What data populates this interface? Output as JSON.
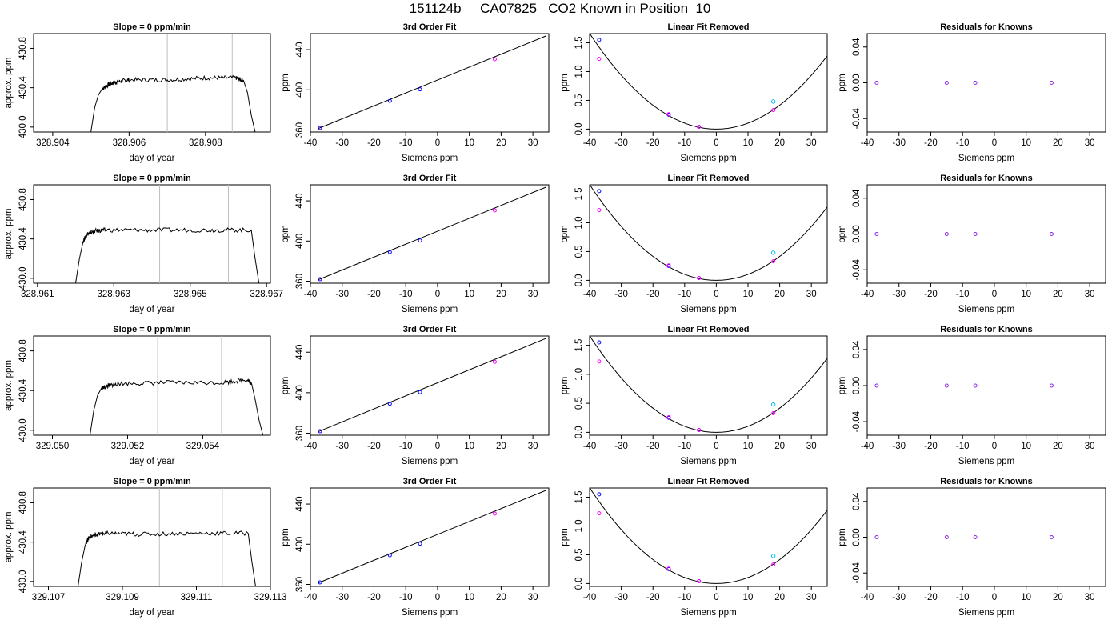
{
  "page_title": "151124b     CA07825   CO2 Known in Position  10",
  "labels": {
    "slope_title": "Slope =  0  ppm/min",
    "fit_title": "3rd Order Fit",
    "linear_title": "Linear Fit Removed",
    "residual_title": "Residuals for Knowns",
    "doy_xlabel": "day of year",
    "doy_ylabel": "approx. ppm",
    "siemens_xlabel": "Siemens ppm",
    "ppm_ylabel": "ppm"
  },
  "colors": {
    "trace": "#000000",
    "gridline": "#bebebe",
    "point_blue": "#0000ff",
    "point_magenta": "#ff00ff",
    "point_cyan": "#00bfff",
    "residual_point": "#8a2be2"
  },
  "chart_data": [
    {
      "type": "line",
      "title": "Slope =  0  ppm/min",
      "xlabel": "day of year",
      "ylabel": "approx. ppm",
      "xlim": [
        328.9035,
        328.9097
      ],
      "ylim": [
        429.95,
        430.95
      ],
      "xticks": [
        "328.904",
        "328.906",
        "328.908"
      ],
      "xtick_values": [
        328.904,
        328.906,
        328.908
      ],
      "yticks": [
        "430.0",
        "430.4",
        "430.8"
      ],
      "ytick_values": [
        430.0,
        430.4,
        430.8
      ],
      "vlines": [
        328.907,
        328.9087
      ],
      "trace": {
        "x": [
          328.905,
          328.9051,
          328.9052,
          328.9053,
          328.9055,
          328.9057,
          328.906,
          328.907,
          328.908,
          328.9088,
          328.909,
          328.9091,
          328.9092,
          328.9093
        ],
        "y": [
          429.95,
          430.2,
          430.33,
          430.39,
          430.44,
          430.46,
          430.48,
          430.48,
          430.5,
          430.5,
          430.47,
          430.35,
          430.12,
          429.95
        ]
      }
    },
    {
      "type": "line",
      "title": "Slope =  0  ppm/min",
      "xlabel": "day of year",
      "ylabel": "approx. ppm",
      "xlim": [
        328.9609,
        328.9671
      ],
      "ylim": [
        429.95,
        430.95
      ],
      "xticks": [
        "328.961",
        "328.963",
        "328.965",
        "328.967"
      ],
      "xtick_values": [
        328.961,
        328.963,
        328.965,
        328.967
      ],
      "yticks": [
        "430.0",
        "430.4",
        "430.8"
      ],
      "ytick_values": [
        430.0,
        430.4,
        430.8
      ],
      "vlines": [
        328.9642,
        328.966
      ],
      "trace": {
        "x": [
          328.962,
          328.9621,
          328.9622,
          328.9623,
          328.9625,
          328.9628,
          328.964,
          328.9655,
          328.9666,
          328.9667,
          328.9668
        ],
        "y": [
          429.95,
          430.2,
          430.38,
          430.45,
          430.48,
          430.49,
          430.49,
          430.49,
          430.49,
          430.2,
          429.95
        ]
      }
    },
    {
      "type": "line",
      "title": "Slope =  0  ppm/min",
      "xlabel": "day of year",
      "ylabel": "approx. ppm",
      "xlim": [
        329.0495,
        329.0558
      ],
      "ylim": [
        429.95,
        430.95
      ],
      "xticks": [
        "329.050",
        "329.052",
        "329.054"
      ],
      "xtick_values": [
        329.05,
        329.052,
        329.054
      ],
      "yticks": [
        "430.0",
        "430.4",
        "430.8"
      ],
      "ytick_values": [
        430.0,
        430.4,
        430.8
      ],
      "vlines": [
        329.0528,
        329.0545
      ],
      "trace": {
        "x": [
          329.051,
          329.0511,
          329.0512,
          329.0513,
          329.0515,
          329.0518,
          329.053,
          329.0545,
          329.0552,
          329.0553,
          329.0554,
          329.0555,
          329.0556
        ],
        "y": [
          429.95,
          430.2,
          430.35,
          430.42,
          430.45,
          430.47,
          430.48,
          430.48,
          430.51,
          430.47,
          430.3,
          430.1,
          429.95
        ]
      }
    },
    {
      "type": "line",
      "title": "Slope =  0  ppm/min",
      "xlabel": "day of year",
      "ylabel": "approx. ppm",
      "xlim": [
        329.1066,
        329.113
      ],
      "ylim": [
        429.95,
        430.95
      ],
      "xticks": [
        "329.107",
        "329.109",
        "329.111",
        "329.113"
      ],
      "xtick_values": [
        329.107,
        329.109,
        329.111,
        329.113
      ],
      "yticks": [
        "430.0",
        "430.4",
        "430.8"
      ],
      "ytick_values": [
        430.0,
        430.4,
        430.8
      ],
      "vlines": [
        329.11,
        329.1117
      ],
      "trace": {
        "x": [
          329.1078,
          329.1079,
          329.108,
          329.1081,
          329.1083,
          329.1086,
          329.1095,
          329.111,
          329.1124,
          329.1125,
          329.1126
        ],
        "y": [
          429.95,
          430.2,
          430.38,
          430.45,
          430.48,
          430.49,
          430.48,
          430.49,
          430.49,
          430.2,
          429.95
        ]
      }
    },
    {
      "type": "scatter",
      "title": "3rd Order Fit",
      "xlabel": "Siemens ppm",
      "ylabel": "ppm",
      "xlim": [
        -40,
        35
      ],
      "ylim": [
        358,
        456
      ],
      "xticks": [
        "-40",
        "-30",
        "-20",
        "-10",
        "0",
        "10",
        "20",
        "30"
      ],
      "xtick_values": [
        -40,
        -30,
        -20,
        -10,
        0,
        10,
        20,
        30
      ],
      "yticks": [
        "360",
        "400",
        "440"
      ],
      "ytick_values": [
        360,
        400,
        440
      ],
      "fit_line": {
        "x": [
          -37.5,
          34
        ],
        "y": [
          361.5,
          453.5
        ]
      },
      "points_blue": {
        "x": [
          -37,
          -15,
          -5.5
        ],
        "y": [
          362,
          389,
          400.5
        ]
      },
      "points_magenta": {
        "x": [
          18
        ],
        "y": [
          430.5
        ]
      }
    },
    {
      "type": "scatter",
      "title": "Linear Fit Removed",
      "xlabel": "Siemens ppm",
      "ylabel": "ppm",
      "xlim": [
        -40,
        35
      ],
      "ylim": [
        -0.05,
        1.66
      ],
      "xticks": [
        "-40",
        "-30",
        "-20",
        "-10",
        "0",
        "10",
        "20",
        "30"
      ],
      "xtick_values": [
        -40,
        -30,
        -20,
        -10,
        0,
        10,
        20,
        30
      ],
      "yticks": [
        "0.0",
        "0.5",
        "1.0",
        "1.5"
      ],
      "ytick_values": [
        0.0,
        0.5,
        1.0,
        1.5
      ],
      "curve_coef": 0.00104,
      "points_blue": {
        "x": [
          -37,
          -15,
          -5.5
        ],
        "y": [
          1.55,
          0.25,
          0.04
        ]
      },
      "points_magenta": {
        "x": [
          -37,
          -15,
          -5.5,
          18
        ],
        "y": [
          1.22,
          0.26,
          0.04,
          0.33
        ]
      },
      "points_cyan": {
        "x": [
          18
        ],
        "y": [
          0.48
        ]
      }
    },
    {
      "type": "scatter",
      "title": "Residuals for Knowns",
      "xlabel": "Siemens ppm",
      "ylabel": "ppm",
      "xlim": [
        -40,
        35
      ],
      "ylim": [
        -0.055,
        0.055
      ],
      "xticks": [
        "-40",
        "-30",
        "-20",
        "-10",
        "0",
        "10",
        "20",
        "30"
      ],
      "xtick_values": [
        -40,
        -30,
        -20,
        -10,
        0,
        10,
        20,
        30
      ],
      "yticks": [
        "-0.04",
        "0.00",
        "0.04"
      ],
      "ytick_values": [
        -0.04,
        0.0,
        0.04
      ],
      "points": {
        "x": [
          -37,
          -15,
          -6,
          18
        ],
        "y": [
          0,
          0,
          0,
          0
        ]
      }
    }
  ]
}
